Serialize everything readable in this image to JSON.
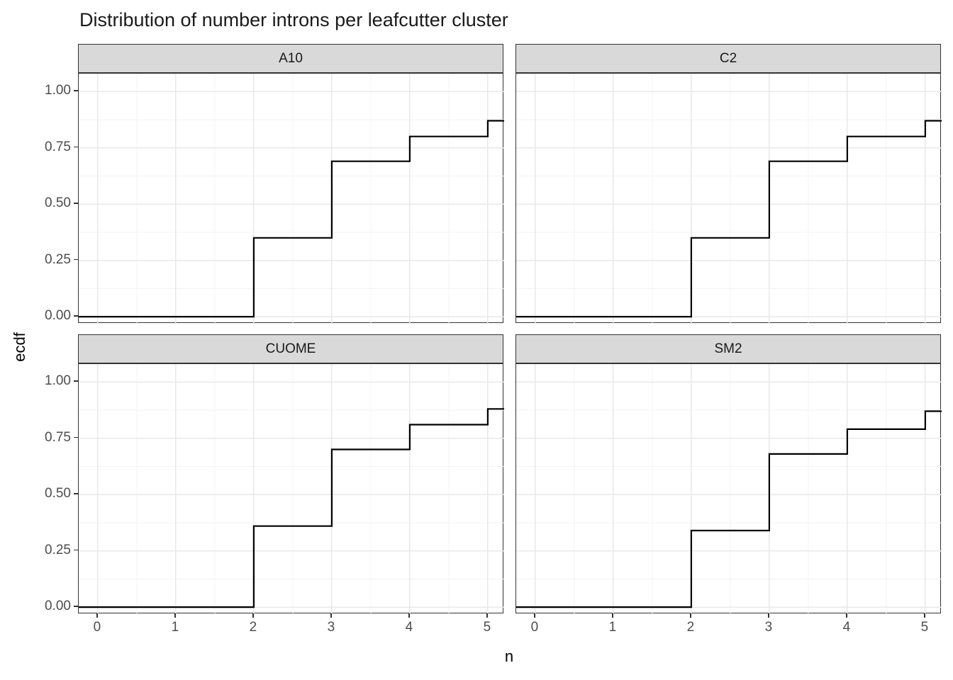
{
  "title": "Distribution of number introns per leafcutter cluster",
  "axes": {
    "x_label": "n",
    "y_label": "ecdf"
  },
  "chart_data": {
    "type": "line",
    "subtype": "step-ecdf",
    "title": "Distribution of number introns per leafcutter cluster",
    "xlabel": "n",
    "ylabel": "ecdf",
    "facets": [
      {
        "label": "A10",
        "steps": [
          {
            "x": 2,
            "ecdf": 0.35
          },
          {
            "x": 3,
            "ecdf": 0.69
          },
          {
            "x": 4,
            "ecdf": 0.8
          },
          {
            "x": 5,
            "ecdf": 0.87
          }
        ]
      },
      {
        "label": "C2",
        "steps": [
          {
            "x": 2,
            "ecdf": 0.35
          },
          {
            "x": 3,
            "ecdf": 0.69
          },
          {
            "x": 4,
            "ecdf": 0.8
          },
          {
            "x": 5,
            "ecdf": 0.87
          }
        ]
      },
      {
        "label": "CUOME",
        "steps": [
          {
            "x": 2,
            "ecdf": 0.36
          },
          {
            "x": 3,
            "ecdf": 0.7
          },
          {
            "x": 4,
            "ecdf": 0.81
          },
          {
            "x": 5,
            "ecdf": 0.88
          }
        ]
      },
      {
        "label": "SM2",
        "steps": [
          {
            "x": 2,
            "ecdf": 0.34
          },
          {
            "x": 3,
            "ecdf": 0.68
          },
          {
            "x": 4,
            "ecdf": 0.79
          },
          {
            "x": 5,
            "ecdf": 0.87
          }
        ]
      }
    ],
    "ecdf_start_value": 0,
    "x_ticks": {
      "values": [
        0,
        1,
        2,
        3,
        4,
        5
      ],
      "labels": [
        "0",
        "1",
        "2",
        "3",
        "4",
        "5"
      ]
    },
    "y_ticks": {
      "values": [
        0,
        0.25,
        0.5,
        0.75,
        1
      ],
      "labels": [
        "0.00",
        "0.25",
        "0.50",
        "0.75",
        "1.00"
      ]
    },
    "x_minor_breaks": [
      0.5,
      1.5,
      2.5,
      3.5,
      4.5
    ],
    "y_minor_breaks": [
      0.125,
      0.375,
      0.625,
      0.875
    ],
    "xlim": [
      -0.245,
      5.21
    ],
    "ylim": [
      -0.031,
      1.079
    ],
    "grid": "major+minor",
    "legend": "none"
  },
  "colors": {
    "background": "#ffffff",
    "panel_border": "#333333",
    "strip_fill": "#d9d9d9",
    "strip_border": "#333333",
    "grid_major": "#e8e8e8",
    "grid_minor": "#f3f3f3",
    "ecdf_line": "#000000",
    "tick_mark": "#333333",
    "tick_label": "#4d4d4d",
    "title_color": "#1a1a1a"
  }
}
